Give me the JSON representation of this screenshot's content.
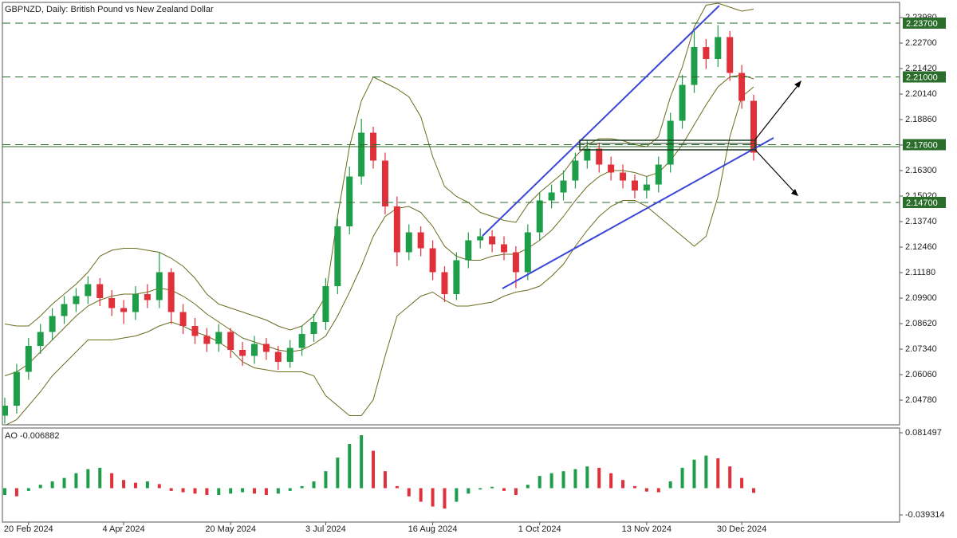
{
  "chart_data": [
    {
      "type": "candlestick",
      "title": "GBPNZD, Daily:  British Pound vs New Zealand Dollar",
      "categories": [
        null,
        null,
        "20 Feb 2024",
        null,
        null,
        null,
        null,
        null,
        null,
        null,
        "4 Apr 2024",
        null,
        null,
        null,
        null,
        null,
        null,
        null,
        null,
        "20 May 2024",
        null,
        null,
        null,
        null,
        null,
        null,
        null,
        "3 Jul 2024",
        null,
        null,
        null,
        null,
        null,
        null,
        null,
        null,
        "16 Aug 2024",
        null,
        null,
        null,
        null,
        null,
        null,
        null,
        null,
        "1 Oct 2024",
        null,
        null,
        null,
        null,
        null,
        null,
        null,
        null,
        "13 Nov 2024",
        null,
        null,
        null,
        null,
        null,
        null,
        null,
        "30 Dec 2024",
        null
      ],
      "open": [
        2.04,
        2.045,
        2.062,
        2.075,
        2.082,
        2.09,
        2.096,
        2.1,
        2.106,
        2.099,
        2.094,
        2.092,
        2.101,
        2.098,
        2.112,
        2.092,
        2.085,
        2.08,
        2.076,
        2.082,
        2.073,
        2.07,
        2.076,
        2.072,
        2.067,
        2.074,
        2.081,
        2.087,
        2.105,
        2.135,
        2.16,
        2.182,
        2.168,
        2.145,
        2.122,
        2.132,
        2.124,
        2.112,
        2.101,
        2.118,
        2.128,
        2.13,
        2.126,
        2.122,
        2.112,
        2.132,
        2.148,
        2.152,
        2.158,
        2.168,
        2.174,
        2.166,
        2.162,
        2.158,
        2.153,
        2.156,
        2.166,
        2.188,
        2.206,
        2.225,
        2.219,
        2.23,
        2.212,
        2.198
      ],
      "high": [
        2.049,
        2.066,
        2.079,
        2.086,
        2.094,
        2.1,
        2.104,
        2.11,
        2.109,
        2.103,
        2.098,
        2.105,
        2.106,
        2.122,
        2.114,
        2.096,
        2.089,
        2.084,
        2.086,
        2.084,
        2.077,
        2.08,
        2.079,
        2.075,
        2.078,
        2.085,
        2.091,
        2.109,
        2.139,
        2.165,
        2.189,
        2.185,
        2.172,
        2.15,
        2.136,
        2.135,
        2.128,
        2.115,
        2.122,
        2.132,
        2.134,
        2.133,
        2.13,
        2.125,
        2.136,
        2.152,
        2.156,
        2.163,
        2.172,
        2.178,
        2.177,
        2.17,
        2.166,
        2.161,
        2.16,
        2.17,
        2.192,
        2.211,
        2.233,
        2.229,
        2.236,
        2.233,
        2.216,
        2.201
      ],
      "low": [
        2.036,
        2.041,
        2.058,
        2.071,
        2.078,
        2.086,
        2.092,
        2.096,
        2.095,
        2.09,
        2.086,
        2.088,
        2.094,
        2.094,
        2.086,
        2.081,
        2.076,
        2.072,
        2.072,
        2.069,
        2.065,
        2.066,
        2.068,
        2.063,
        2.064,
        2.07,
        2.077,
        2.083,
        2.101,
        2.131,
        2.156,
        2.164,
        2.141,
        2.115,
        2.118,
        2.12,
        2.108,
        2.097,
        2.098,
        2.114,
        2.124,
        2.122,
        2.118,
        2.104,
        2.108,
        2.128,
        2.144,
        2.148,
        2.154,
        2.164,
        2.162,
        2.158,
        2.154,
        2.149,
        2.149,
        2.152,
        2.162,
        2.184,
        2.202,
        2.214,
        2.215,
        2.208,
        2.194,
        2.168
      ],
      "close": [
        2.045,
        2.062,
        2.075,
        2.082,
        2.09,
        2.096,
        2.1,
        2.106,
        2.099,
        2.094,
        2.092,
        2.101,
        2.098,
        2.112,
        2.092,
        2.085,
        2.08,
        2.076,
        2.082,
        2.073,
        2.07,
        2.076,
        2.072,
        2.067,
        2.074,
        2.081,
        2.087,
        2.105,
        2.135,
        2.16,
        2.182,
        2.168,
        2.145,
        2.122,
        2.132,
        2.124,
        2.112,
        2.101,
        2.118,
        2.128,
        2.13,
        2.126,
        2.122,
        2.112,
        2.132,
        2.148,
        2.152,
        2.158,
        2.168,
        2.174,
        2.166,
        2.162,
        2.158,
        2.153,
        2.156,
        2.166,
        2.188,
        2.206,
        2.225,
        2.219,
        2.23,
        2.212,
        2.198,
        2.172
      ],
      "up_color": "#1f9e4a",
      "down_color": "#e0313b",
      "bands": {
        "color": "#6b6b1e",
        "upper": [
          2.086,
          2.085,
          2.085,
          2.09,
          2.096,
          2.101,
          2.106,
          2.112,
          2.12,
          2.123,
          2.124,
          2.124,
          2.123,
          2.122,
          2.119,
          2.115,
          2.109,
          2.101,
          2.096,
          2.094,
          2.092,
          2.09,
          2.088,
          2.085,
          2.083,
          2.085,
          2.09,
          2.1,
          2.14,
          2.175,
          2.198,
          2.21,
          2.207,
          2.204,
          2.2,
          2.19,
          2.17,
          2.155,
          2.15,
          2.147,
          2.142,
          2.14,
          2.138,
          2.137,
          2.146,
          2.152,
          2.157,
          2.162,
          2.17,
          2.176,
          2.179,
          2.179,
          2.178,
          2.176,
          2.175,
          2.18,
          2.2,
          2.215,
          2.235,
          2.246,
          2.247,
          2.245,
          2.243,
          2.244
        ],
        "middle": [
          2.06,
          2.062,
          2.066,
          2.072,
          2.078,
          2.084,
          2.09,
          2.095,
          2.098,
          2.1,
          2.101,
          2.101,
          2.102,
          2.104,
          2.103,
          2.1,
          2.096,
          2.091,
          2.087,
          2.083,
          2.079,
          2.077,
          2.075,
          2.073,
          2.072,
          2.073,
          2.076,
          2.08,
          2.09,
          2.102,
          2.115,
          2.13,
          2.14,
          2.144,
          2.145,
          2.142,
          2.135,
          2.125,
          2.12,
          2.118,
          2.118,
          2.12,
          2.121,
          2.121,
          2.124,
          2.128,
          2.133,
          2.14,
          2.148,
          2.155,
          2.16,
          2.163,
          2.163,
          2.162,
          2.16,
          2.162,
          2.168,
          2.176,
          2.186,
          2.196,
          2.205,
          2.21,
          2.211,
          2.209
        ],
        "lower": [
          2.035,
          2.038,
          2.045,
          2.052,
          2.06,
          2.066,
          2.072,
          2.078,
          2.078,
          2.078,
          2.079,
          2.08,
          2.082,
          2.085,
          2.087,
          2.085,
          2.082,
          2.08,
          2.077,
          2.073,
          2.067,
          2.064,
          2.063,
          2.062,
          2.062,
          2.062,
          2.06,
          2.05,
          2.045,
          2.04,
          2.04,
          2.048,
          2.07,
          2.09,
          2.095,
          2.1,
          2.102,
          2.098,
          2.095,
          2.095,
          2.096,
          2.097,
          2.1,
          2.102,
          2.103,
          2.105,
          2.11,
          2.116,
          2.125,
          2.133,
          2.14,
          2.145,
          2.148,
          2.148,
          2.145,
          2.14,
          2.135,
          2.13,
          2.125,
          2.13,
          2.15,
          2.18,
          2.2,
          2.205
        ]
      },
      "ylim": [
        2.0354,
        2.2474
      ],
      "yticks": [
        {
          "value": 2.0478,
          "label": "2.04780"
        },
        {
          "value": 2.0606,
          "label": "2.06060"
        },
        {
          "value": 2.0734,
          "label": "2.07340"
        },
        {
          "value": 2.0862,
          "label": "2.08620"
        },
        {
          "value": 2.099,
          "label": "2.09900"
        },
        {
          "value": 2.1118,
          "label": "2.11180"
        },
        {
          "value": 2.1246,
          "label": "2.12460"
        },
        {
          "value": 2.1374,
          "label": "2.13740"
        },
        {
          "value": 2.1502,
          "label": "2.15020"
        },
        {
          "value": 2.163,
          "label": "2.16300"
        },
        {
          "value": 2.1758,
          "label": "2.17580"
        },
        {
          "value": 2.1886,
          "label": "2.18860"
        },
        {
          "value": 2.2014,
          "label": "2.20140"
        },
        {
          "value": 2.2142,
          "label": "2.21420"
        },
        {
          "value": 2.227,
          "label": "2.22700"
        },
        {
          "value": 2.2398,
          "label": "2.23980"
        }
      ],
      "levels": [
        {
          "value": 2.237,
          "label": "2.23700"
        },
        {
          "value": 2.21,
          "label": "2.21000"
        },
        {
          "value": 2.176,
          "label": "2.17600"
        },
        {
          "value": 2.147,
          "label": "2.14700"
        }
      ],
      "level_color": "#2b6e2b"
    },
    {
      "type": "histogram",
      "title": "AO -0.006882",
      "values": [
        -0.01,
        -0.012,
        -0.004,
        0.005,
        0.01,
        0.015,
        0.022,
        0.028,
        0.03,
        0.022,
        0.012,
        0.008,
        0.01,
        0.006,
        -0.004,
        -0.006,
        -0.008,
        -0.01,
        -0.01,
        -0.008,
        -0.006,
        -0.008,
        -0.01,
        -0.008,
        -0.004,
        0.003,
        0.01,
        0.025,
        0.045,
        0.065,
        0.078,
        0.055,
        0.025,
        0.003,
        -0.012,
        -0.02,
        -0.027,
        -0.03,
        -0.02,
        -0.008,
        -0.002,
        0.002,
        -0.004,
        -0.01,
        0.005,
        0.018,
        0.022,
        0.025,
        0.028,
        0.032,
        0.03,
        0.022,
        0.012,
        0.003,
        -0.005,
        -0.006,
        0.01,
        0.03,
        0.042,
        0.048,
        0.044,
        0.032,
        0.015,
        -0.006882
      ],
      "up_color": "#1f9e4a",
      "down_color": "#e0313b",
      "ylim": [
        -0.039314,
        0.081497
      ],
      "yticks": [
        -0.039314,
        0.081497
      ]
    }
  ]
}
